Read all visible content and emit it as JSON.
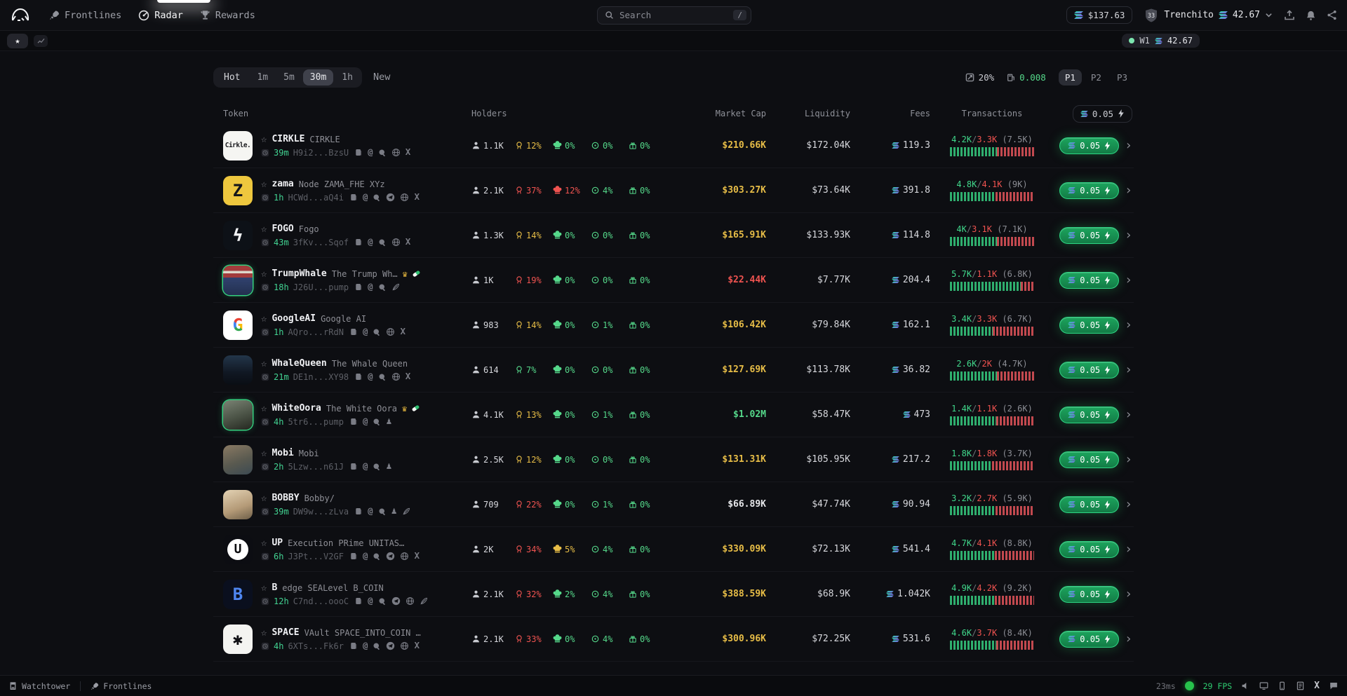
{
  "nav": {
    "items": [
      {
        "label": "Frontlines"
      },
      {
        "label": "Radar"
      },
      {
        "label": "Rewards"
      }
    ],
    "search": {
      "placeholder": "Search",
      "shortcut": "/"
    },
    "wallet_balance": "$137.63",
    "account": {
      "level": "33",
      "name": "Trenchito",
      "balance": "42.67"
    }
  },
  "watchbar": {
    "badge": {
      "label": "W1",
      "value": "42.67"
    }
  },
  "filters": {
    "timeframes": [
      "Hot",
      "1m",
      "5m",
      "30m",
      "1h"
    ],
    "active_timeframe": "30m",
    "new_label": "New",
    "slippage": "20%",
    "priority_fee": "0.008",
    "presets": [
      "P1",
      "P2",
      "P3"
    ],
    "active_preset": "P1"
  },
  "table": {
    "headers": {
      "token": "Token",
      "holders": "Holders",
      "market_cap": "Market Cap",
      "liquidity": "Liquidity",
      "fees": "Fees",
      "transactions": "Transactions"
    },
    "quick_buy": "0.05",
    "rows": [
      {
        "name": "CIRKLE",
        "subtitle": "CIRKLE",
        "age": "39m",
        "address": "H9i2...BzsU",
        "badges": [],
        "links": [
          "copy",
          "at",
          "search",
          "globe",
          "x"
        ],
        "avatar": {
          "bg": "#f5f5f2",
          "fg": "#1b1b1f",
          "glyph": "Cirkle.",
          "cls": "av-cirkle",
          "ring": false
        },
        "holders": "1.1K",
        "stats": [
          {
            "value": "12%",
            "color": "yellow"
          },
          {
            "value": "0%",
            "color": "green"
          },
          {
            "value": "0%",
            "color": "green"
          },
          {
            "value": "0%",
            "color": "green"
          }
        ],
        "mcap": {
          "value": "$210.66K",
          "color": "yellow"
        },
        "liquidity": "$172.04K",
        "fees": "119.3",
        "tx": {
          "buys": "4.2K",
          "sells": "3.3K",
          "total": "(7.5K)",
          "green_pct": 56
        }
      },
      {
        "name": "zama",
        "subtitle": "Node ZAMA_FHE XYz",
        "age": "1h",
        "address": "HCWd...aQ4i",
        "badges": [],
        "links": [
          "copy",
          "at",
          "search",
          "telegram",
          "globe",
          "x"
        ],
        "avatar": {
          "bg": "#eec73e",
          "fg": "#15161a",
          "glyph": "Z",
          "cls": "av-big",
          "ring": false
        },
        "holders": "2.1K",
        "stats": [
          {
            "value": "37%",
            "color": "red"
          },
          {
            "value": "12%",
            "color": "red"
          },
          {
            "value": "4%",
            "color": "green"
          },
          {
            "value": "0%",
            "color": "green"
          }
        ],
        "mcap": {
          "value": "$303.27K",
          "color": "yellow"
        },
        "liquidity": "$73.64K",
        "fees": "391.8",
        "tx": {
          "buys": "4.8K",
          "sells": "4.1K",
          "total": "(9K)",
          "green_pct": 54
        }
      },
      {
        "name": "FOGO",
        "subtitle": "Fogo",
        "age": "43m",
        "address": "3fKv...Sqof",
        "badges": [],
        "links": [
          "copy",
          "at",
          "search",
          "globe",
          "x"
        ],
        "avatar": {
          "bg": "#0d1117",
          "fg": "#f2f3f5",
          "glyph": "ϟ",
          "cls": "av-big",
          "ring": false
        },
        "holders": "1.3K",
        "stats": [
          {
            "value": "14%",
            "color": "yellow"
          },
          {
            "value": "0%",
            "color": "green"
          },
          {
            "value": "0%",
            "color": "green"
          },
          {
            "value": "0%",
            "color": "green"
          }
        ],
        "mcap": {
          "value": "$165.91K",
          "color": "yellow"
        },
        "liquidity": "$133.93K",
        "fees": "114.8",
        "tx": {
          "buys": "4K",
          "sells": "3.1K",
          "total": "(7.1K)",
          "green_pct": 56
        }
      },
      {
        "name": "TrumpWhale",
        "subtitle": "The Trump Wh…",
        "age": "18h",
        "address": "J26U...pump",
        "badges": [
          "crown",
          "pill"
        ],
        "links": [
          "copy",
          "at",
          "search",
          "feather"
        ],
        "avatar": {
          "bg": "linear-gradient(180deg,#a33c3c 0%,#a33c3c 18%,#ddd8cb 18%,#ddd8cb 26%,#a33c3c 26%,#a33c3c 40%,#31426f 40%,#23304f 100%)",
          "fg": "#fff",
          "glyph": "",
          "cls": "",
          "ring": true
        },
        "holders": "1K",
        "stats": [
          {
            "value": "19%",
            "color": "red"
          },
          {
            "value": "0%",
            "color": "green"
          },
          {
            "value": "0%",
            "color": "green"
          },
          {
            "value": "0%",
            "color": "green"
          }
        ],
        "mcap": {
          "value": "$22.44K",
          "color": "red"
        },
        "liquidity": "$7.77K",
        "fees": "204.4",
        "tx": {
          "buys": "5.7K",
          "sells": "1.1K",
          "total": "(6.8K)",
          "green_pct": 84
        }
      },
      {
        "name": "GoogleAI",
        "subtitle": "Google AI",
        "age": "1h",
        "address": "AQro...rRdN",
        "badges": [],
        "links": [
          "copy",
          "at",
          "search",
          "globe",
          "x"
        ],
        "avatar": {
          "bg": "#ffffff",
          "fg": "#4285f4",
          "glyph": "G",
          "cls": "av-google",
          "ring": false
        },
        "holders": "983",
        "stats": [
          {
            "value": "14%",
            "color": "yellow"
          },
          {
            "value": "0%",
            "color": "green"
          },
          {
            "value": "1%",
            "color": "green"
          },
          {
            "value": "0%",
            "color": "green"
          }
        ],
        "mcap": {
          "value": "$106.42K",
          "color": "yellow"
        },
        "liquidity": "$79.84K",
        "fees": "162.1",
        "tx": {
          "buys": "3.4K",
          "sells": "3.3K",
          "total": "(6.7K)",
          "green_pct": 51
        }
      },
      {
        "name": "WhaleQueen",
        "subtitle": "The Whale Queen",
        "age": "21m",
        "address": "DE1n...XY98",
        "badges": [],
        "links": [
          "copy",
          "at",
          "search",
          "globe",
          "x"
        ],
        "avatar": {
          "bg": "linear-gradient(180deg,#23364a 0%,#101722 60%,#0a0e14 100%)",
          "fg": "#9fb6c9",
          "glyph": "",
          "cls": "",
          "ring": false
        },
        "holders": "614",
        "stats": [
          {
            "value": "7%",
            "color": "green"
          },
          {
            "value": "0%",
            "color": "green"
          },
          {
            "value": "0%",
            "color": "green"
          },
          {
            "value": "0%",
            "color": "green"
          }
        ],
        "mcap": {
          "value": "$127.69K",
          "color": "yellow"
        },
        "liquidity": "$113.78K",
        "fees": "36.82",
        "tx": {
          "buys": "2.6K",
          "sells": "2K",
          "total": "(4.7K)",
          "green_pct": 56
        }
      },
      {
        "name": "WhiteOora",
        "subtitle": "The White Oora",
        "age": "4h",
        "address": "5tr6...pump",
        "badges": [
          "crown",
          "pill"
        ],
        "links": [
          "copy",
          "at",
          "search",
          "pawn"
        ],
        "avatar": {
          "bg": "linear-gradient(160deg,#7a8374 0%,#4a5245 55%,#23261f 100%)",
          "fg": "#d8dcd2",
          "glyph": "",
          "cls": "",
          "ring": true
        },
        "holders": "4.1K",
        "stats": [
          {
            "value": "13%",
            "color": "yellow"
          },
          {
            "value": "0%",
            "color": "green"
          },
          {
            "value": "1%",
            "color": "green"
          },
          {
            "value": "0%",
            "color": "green"
          }
        ],
        "mcap": {
          "value": "$1.02M",
          "color": "green"
        },
        "liquidity": "$58.47K",
        "fees": "473",
        "tx": {
          "buys": "1.4K",
          "sells": "1.1K",
          "total": "(2.6K)",
          "green_pct": 55
        }
      },
      {
        "name": "Mobi",
        "subtitle": "Mobi",
        "age": "2h",
        "address": "5Lzw...n61J",
        "badges": [],
        "links": [
          "copy",
          "at",
          "search",
          "pawn"
        ],
        "avatar": {
          "bg": "linear-gradient(160deg,#8a7a63 0%,#5a5a50 55%,#3c4a52 100%)",
          "fg": "#e3ddd2",
          "glyph": "",
          "cls": "",
          "ring": false
        },
        "holders": "2.5K",
        "stats": [
          {
            "value": "12%",
            "color": "yellow"
          },
          {
            "value": "0%",
            "color": "green"
          },
          {
            "value": "0%",
            "color": "green"
          },
          {
            "value": "0%",
            "color": "green"
          }
        ],
        "mcap": {
          "value": "$131.31K",
          "color": "yellow"
        },
        "liquidity": "$105.95K",
        "fees": "217.2",
        "tx": {
          "buys": "1.8K",
          "sells": "1.8K",
          "total": "(3.7K)",
          "green_pct": 50
        }
      },
      {
        "name": "BOBBY",
        "subtitle": "Bobby/",
        "age": "39m",
        "address": "DW9w...zLva",
        "badges": [],
        "links": [
          "copy",
          "at",
          "search",
          "pawn",
          "feather"
        ],
        "avatar": {
          "bg": "linear-gradient(160deg,#e3d2b4 0%,#b49a77 60%,#6e5f49 100%)",
          "fg": "#5d4f3a",
          "glyph": "",
          "cls": "",
          "ring": false
        },
        "holders": "709",
        "stats": [
          {
            "value": "22%",
            "color": "red"
          },
          {
            "value": "0%",
            "color": "green"
          },
          {
            "value": "1%",
            "color": "green"
          },
          {
            "value": "0%",
            "color": "green"
          }
        ],
        "mcap": {
          "value": "$66.89K",
          "color": "white"
        },
        "liquidity": "$47.74K",
        "fees": "90.94",
        "tx": {
          "buys": "3.2K",
          "sells": "2.7K",
          "total": "(5.9K)",
          "green_pct": 54
        }
      },
      {
        "name": "UP",
        "subtitle": "Execution PRime UNITAS_LAB…",
        "age": "6h",
        "address": "J3Pt...V2GF",
        "badges": [],
        "links": [
          "copy",
          "at",
          "search",
          "telegram",
          "globe",
          "x"
        ],
        "avatar": {
          "bg": "#0c0d12",
          "fg": "#0b0b0e",
          "glyph": "U",
          "cls": "av-up",
          "ring": false
        },
        "holders": "2K",
        "stats": [
          {
            "value": "34%",
            "color": "red"
          },
          {
            "value": "5%",
            "color": "yellow"
          },
          {
            "value": "4%",
            "color": "green"
          },
          {
            "value": "0%",
            "color": "green"
          }
        ],
        "mcap": {
          "value": "$330.09K",
          "color": "yellow"
        },
        "liquidity": "$72.13K",
        "fees": "541.4",
        "tx": {
          "buys": "4.7K",
          "sells": "4.1K",
          "total": "(8.8K)",
          "green_pct": 53
        }
      },
      {
        "name": "B",
        "subtitle": "edge SEALevel B_COIN",
        "age": "12h",
        "address": "C7nd...oooC",
        "badges": [],
        "links": [
          "copy",
          "at",
          "search",
          "telegram",
          "globe",
          "feather"
        ],
        "avatar": {
          "bg": "#0a0f1e",
          "fg": "#4f86f0",
          "glyph": "B",
          "cls": "av-big",
          "ring": false
        },
        "holders": "2.1K",
        "stats": [
          {
            "value": "32%",
            "color": "red"
          },
          {
            "value": "2%",
            "color": "green"
          },
          {
            "value": "4%",
            "color": "green"
          },
          {
            "value": "0%",
            "color": "green"
          }
        ],
        "mcap": {
          "value": "$388.59K",
          "color": "yellow"
        },
        "liquidity": "$68.9K",
        "fees": "1.042K",
        "tx": {
          "buys": "4.9K",
          "sells": "4.2K",
          "total": "(9.2K)",
          "green_pct": 53
        }
      },
      {
        "name": "SPACE",
        "subtitle": "VAult SPACE_INTO_COIN N…",
        "age": "4h",
        "address": "6XTs...Fk6r",
        "badges": [],
        "links": [
          "copy",
          "at",
          "search",
          "telegram",
          "globe",
          "x"
        ],
        "avatar": {
          "bg": "#f4f4f1",
          "fg": "#101014",
          "glyph": "✱",
          "cls": "av-big",
          "ring": false
        },
        "holders": "2.1K",
        "stats": [
          {
            "value": "33%",
            "color": "red"
          },
          {
            "value": "0%",
            "color": "green"
          },
          {
            "value": "4%",
            "color": "green"
          },
          {
            "value": "0%",
            "color": "green"
          }
        ],
        "mcap": {
          "value": "$300.96K",
          "color": "yellow"
        },
        "liquidity": "$72.25K",
        "fees": "531.6",
        "tx": {
          "buys": "4.6K",
          "sells": "3.7K",
          "total": "(8.4K)",
          "green_pct": 55
        }
      }
    ]
  },
  "statusbar": {
    "watchtower_label": "Watchtower",
    "frontlines_label": "Frontlines",
    "latency": "23ms",
    "fps": "29 FPS"
  },
  "accent_colors": {
    "green": "#55d88a",
    "yellow": "#e7bd47",
    "red": "#ef5350",
    "buy_button": "#1ca45d",
    "sol_gradient": [
      "#14f195",
      "#9945ff"
    ]
  }
}
